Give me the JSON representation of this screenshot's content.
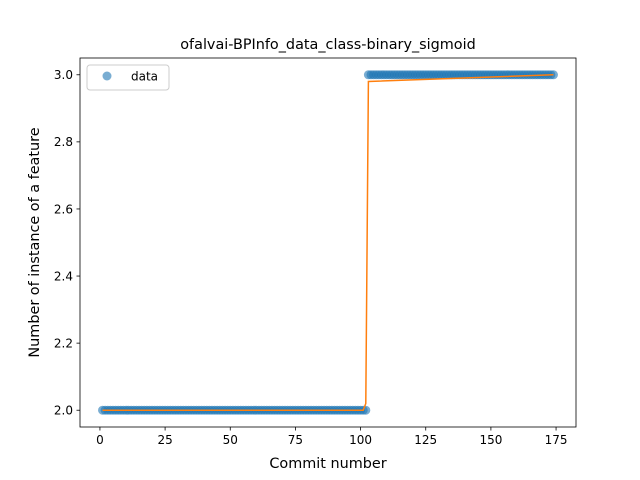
{
  "chart_data": {
    "type": "scatter",
    "title": "ofalvai-BPInfo_data_class-binary_sigmoid",
    "xlabel": "Commit number",
    "ylabel": "Number of instance of a feature",
    "xlim": [
      -7.65,
      182.65
    ],
    "ylim": [
      1.95,
      3.05
    ],
    "xticks": [
      0,
      25,
      50,
      75,
      100,
      125,
      150,
      175
    ],
    "yticks": [
      2.0,
      2.2,
      2.4,
      2.6,
      2.8,
      3.0
    ],
    "ytick_labels": [
      "2.0",
      "2.2",
      "2.4",
      "2.6",
      "2.8",
      "3.0"
    ],
    "grid": false,
    "legend": {
      "placement": "top-left",
      "entries": [
        "data"
      ]
    },
    "series": [
      {
        "name": "data",
        "style": "markers",
        "color": "#1f77b4",
        "segments": [
          {
            "x_start": 1,
            "x_end": 102,
            "y": 2
          },
          {
            "x_start": 103,
            "x_end": 174,
            "y": 3
          }
        ]
      },
      {
        "style": "line",
        "color": "#ff7f0e",
        "x": [
          1,
          101,
          102,
          102.5,
          103,
          174
        ],
        "y": [
          2,
          2,
          2.02,
          2.5,
          2.98,
          3
        ]
      }
    ]
  }
}
